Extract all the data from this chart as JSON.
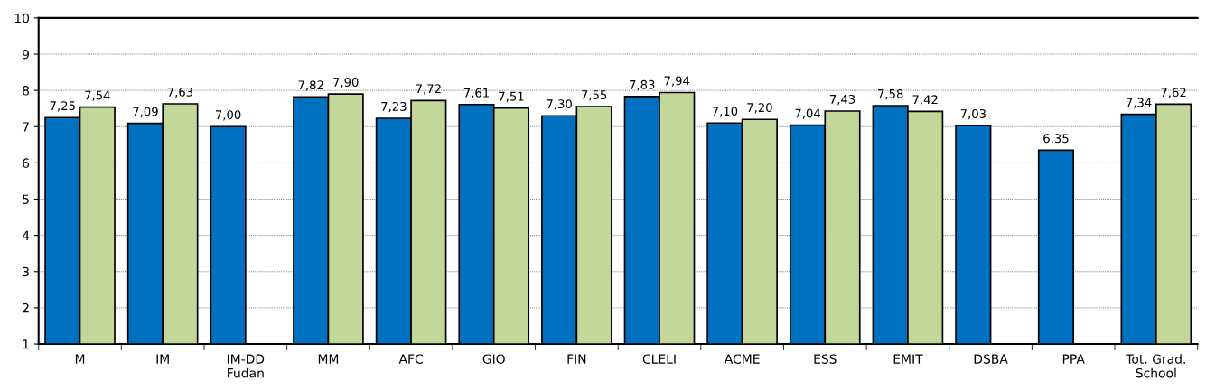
{
  "chart_data": {
    "type": "bar",
    "categories": [
      "M",
      "IM",
      "IM-DD\nFudan",
      "MM",
      "AFC",
      "GIO",
      "FIN",
      "CLELI",
      "ACME",
      "ESS",
      "EMIT",
      "DSBA",
      "PPA",
      "Tot. Grad.\nSchool"
    ],
    "series": [
      {
        "color": "#0070c0",
        "values": [
          7.25,
          7.09,
          7.0,
          7.82,
          7.23,
          7.61,
          7.3,
          7.83,
          7.1,
          7.04,
          7.58,
          7.03,
          6.35,
          7.34
        ],
        "value_labels": [
          "7,25",
          "7,09",
          "7,00",
          "7,82",
          "7,23",
          "7,61",
          "7,30",
          "7,83",
          "7,10",
          "7,04",
          "7,58",
          "7,03",
          "6,35",
          "7,34"
        ]
      },
      {
        "color": "#c4d79b",
        "values": [
          7.54,
          7.63,
          null,
          7.9,
          7.72,
          7.51,
          7.55,
          7.94,
          7.2,
          7.43,
          7.42,
          null,
          null,
          7.62
        ],
        "value_labels": [
          "7,54",
          "7,63",
          null,
          "7,90",
          "7,72",
          "7,51",
          "7,55",
          "7,94",
          "7,20",
          "7,43",
          "7,42",
          null,
          null,
          "7,62"
        ]
      }
    ],
    "ylim": [
      1,
      10
    ],
    "yticks": [
      1,
      2,
      3,
      4,
      5,
      6,
      7,
      8,
      9,
      10
    ],
    "grid": "y"
  }
}
